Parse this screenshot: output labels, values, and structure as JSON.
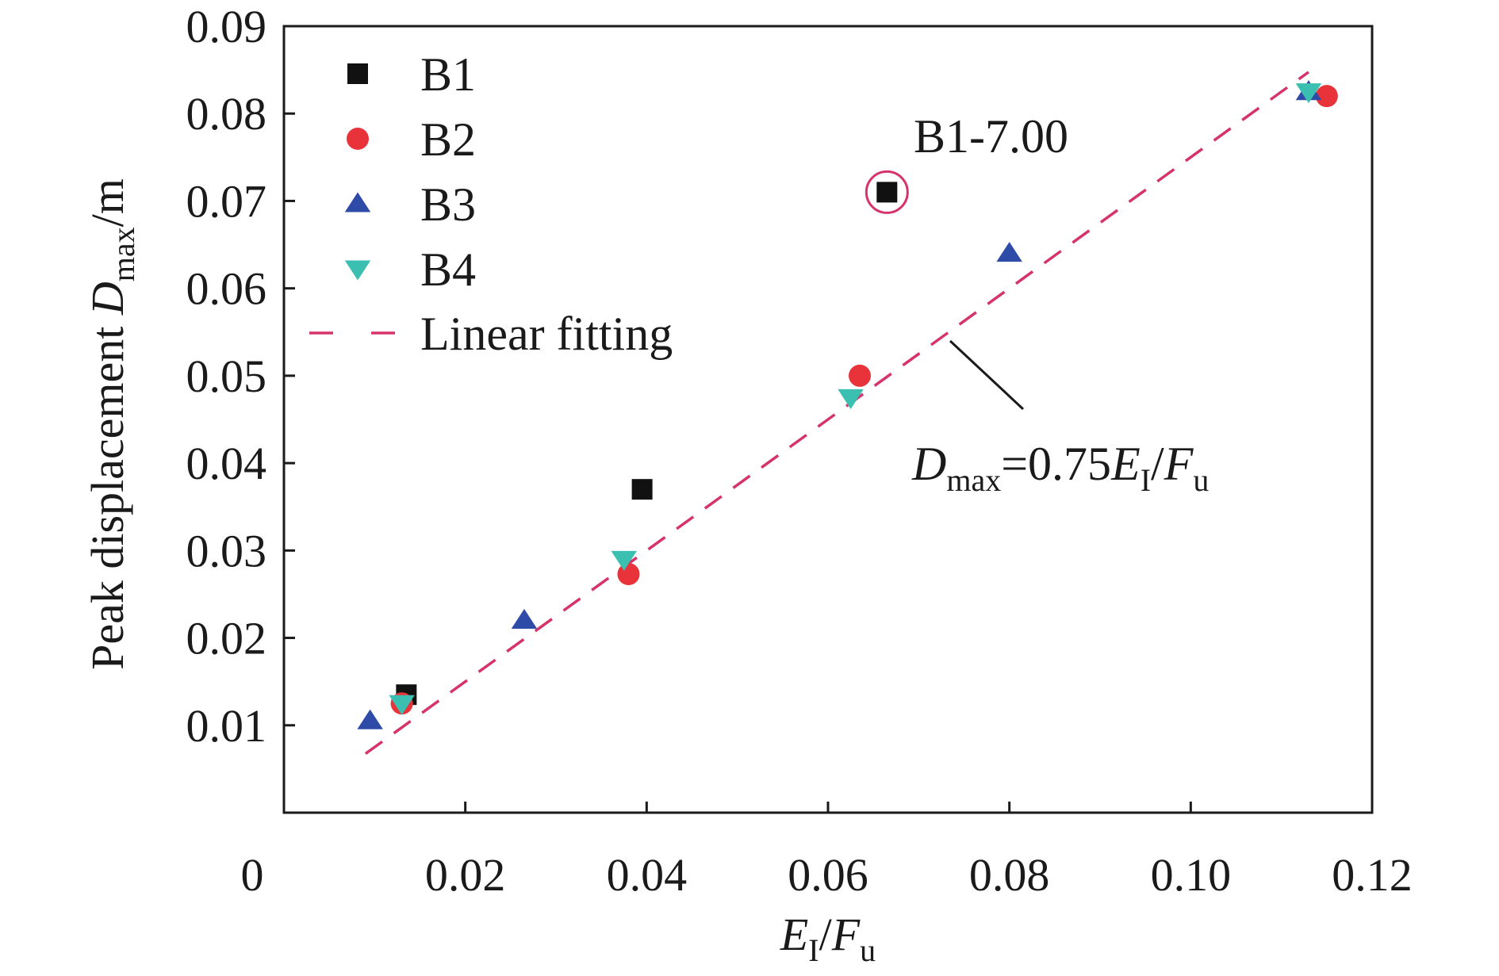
{
  "chart_data": {
    "type": "scatter",
    "x_axis": {
      "label_parts": [
        {
          "t": "E",
          "italic": true
        },
        {
          "t": "I",
          "sub": true
        },
        {
          "t": "/"
        },
        {
          "t": "F",
          "italic": true
        },
        {
          "t": "u",
          "sub": true
        }
      ],
      "range": [
        0,
        0.12
      ],
      "ticks": [
        0,
        0.02,
        0.04,
        0.06,
        0.08,
        0.1,
        0.12
      ],
      "tick_labels": [
        "0",
        "0.02",
        "0.04",
        "0.06",
        "0.08",
        "0.10",
        "0.12"
      ]
    },
    "y_axis": {
      "label_parts": [
        {
          "t": "Peak displacement "
        },
        {
          "t": "D",
          "italic": true
        },
        {
          "t": "max",
          "sub": true
        },
        {
          "t": "/m"
        }
      ],
      "range": [
        0,
        0.09
      ],
      "ticks": [
        0.01,
        0.02,
        0.03,
        0.04,
        0.05,
        0.06,
        0.07,
        0.08,
        0.09
      ],
      "tick_labels": [
        "0.01",
        "0.02",
        "0.03",
        "0.04",
        "0.05",
        "0.06",
        "0.07",
        "0.08",
        "0.09"
      ]
    },
    "series": [
      {
        "name": "B1",
        "marker": "square",
        "color": "#111111",
        "x": [
          0.0135,
          0.0395,
          0.0665
        ],
        "y": [
          0.0135,
          0.037,
          0.071
        ]
      },
      {
        "name": "B2",
        "marker": "circle",
        "color": "#e8333a",
        "x": [
          0.013,
          0.038,
          0.0635,
          0.115
        ],
        "y": [
          0.0125,
          0.0273,
          0.05,
          0.082
        ]
      },
      {
        "name": "B3",
        "marker": "triangle-up",
        "color": "#2f4ba8",
        "x": [
          0.0095,
          0.0265,
          0.08,
          0.113
        ],
        "y": [
          0.0105,
          0.022,
          0.064,
          0.0825
        ]
      },
      {
        "name": "B4",
        "marker": "triangle-down",
        "color": "#3bbfb0",
        "x": [
          0.013,
          0.0375,
          0.0625,
          0.113
        ],
        "y": [
          0.0125,
          0.029,
          0.0475,
          0.0825
        ]
      }
    ],
    "fit": {
      "name": "Linear fitting",
      "color": "#d6336c",
      "slope": 0.75,
      "x_range": [
        0.009,
        0.113
      ],
      "equation_parts": [
        {
          "t": "D",
          "italic": true
        },
        {
          "t": "max",
          "sub": true
        },
        {
          "t": "=0.75"
        },
        {
          "t": "E",
          "italic": true
        },
        {
          "t": "I",
          "sub": true
        },
        {
          "t": "/"
        },
        {
          "t": "F",
          "italic": true
        },
        {
          "t": "u",
          "sub": true
        }
      ]
    },
    "annotation": {
      "text": "B1-7.00",
      "point": {
        "x": 0.0665,
        "y": 0.071
      },
      "circle_color": "#d6336c"
    },
    "legend": {
      "placement": "top-left"
    },
    "grid": false
  }
}
